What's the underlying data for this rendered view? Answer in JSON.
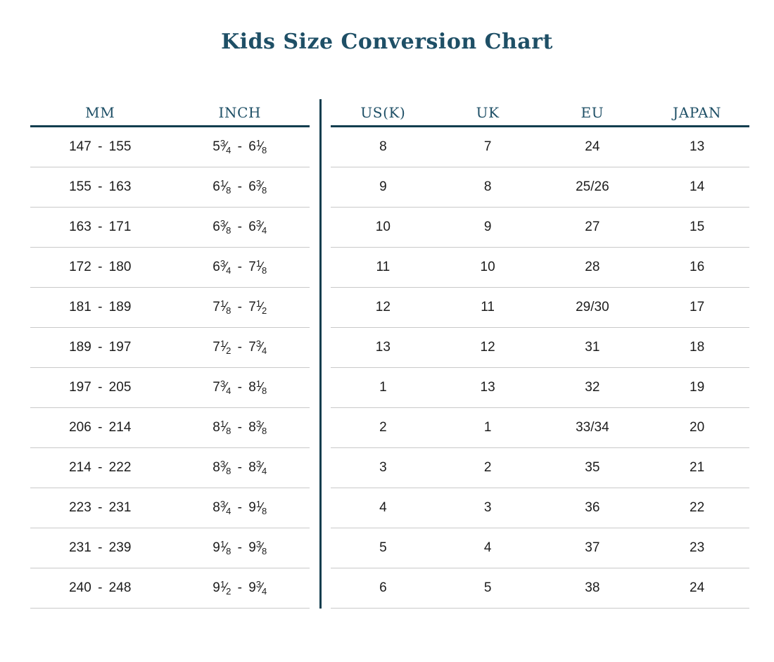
{
  "title": "Kids Size Conversion Chart",
  "colors": {
    "accent_text": "#1e4f66",
    "dark_line": "#123e4f",
    "row_separator": "#c9c9c9",
    "body_text": "#1c1c1c",
    "background": "#ffffff"
  },
  "left_table": {
    "headers": [
      "MM",
      "INCH"
    ],
    "rows": [
      {
        "mm": "147 - 155",
        "inch": "5 3/4 - 6 1/8"
      },
      {
        "mm": "155 - 163",
        "inch": "6 1/8 - 6 3/8"
      },
      {
        "mm": "163 - 171",
        "inch": "6 3/8 - 6 3/4"
      },
      {
        "mm": "172 - 180",
        "inch": "6 3/4 - 7 1/8"
      },
      {
        "mm": "181 - 189",
        "inch": "7 1/8 - 7 1/2"
      },
      {
        "mm": "189 - 197",
        "inch": "7 1/2 - 7 3/4"
      },
      {
        "mm": "197 - 205",
        "inch": "7 3/4 - 8 1/8"
      },
      {
        "mm": "206 - 214",
        "inch": "8 1/8 - 8 3/8"
      },
      {
        "mm": "214 - 222",
        "inch": "8 3/8 - 8 3/4"
      },
      {
        "mm": "223 - 231",
        "inch": "8 3/4 - 9 1/8"
      },
      {
        "mm": "231 - 239",
        "inch": "9 1/8 - 9 3/8"
      },
      {
        "mm": "240 - 248",
        "inch": "9 1/2 - 9 3/4"
      }
    ]
  },
  "right_table": {
    "headers": [
      "US(K)",
      "UK",
      "EU",
      "JAPAN"
    ],
    "rows": [
      {
        "usk": "8",
        "uk": "7",
        "eu": "24",
        "japan": "13"
      },
      {
        "usk": "9",
        "uk": "8",
        "eu": "25/26",
        "japan": "14"
      },
      {
        "usk": "10",
        "uk": "9",
        "eu": "27",
        "japan": "15"
      },
      {
        "usk": "11",
        "uk": "10",
        "eu": "28",
        "japan": "16"
      },
      {
        "usk": "12",
        "uk": "11",
        "eu": "29/30",
        "japan": "17"
      },
      {
        "usk": "13",
        "uk": "12",
        "eu": "31",
        "japan": "18"
      },
      {
        "usk": "1",
        "uk": "13",
        "eu": "32",
        "japan": "19"
      },
      {
        "usk": "2",
        "uk": "1",
        "eu": "33/34",
        "japan": "20"
      },
      {
        "usk": "3",
        "uk": "2",
        "eu": "35",
        "japan": "21"
      },
      {
        "usk": "4",
        "uk": "3",
        "eu": "36",
        "japan": "22"
      },
      {
        "usk": "5",
        "uk": "4",
        "eu": "37",
        "japan": "23"
      },
      {
        "usk": "6",
        "uk": "5",
        "eu": "38",
        "japan": "24"
      }
    ]
  }
}
